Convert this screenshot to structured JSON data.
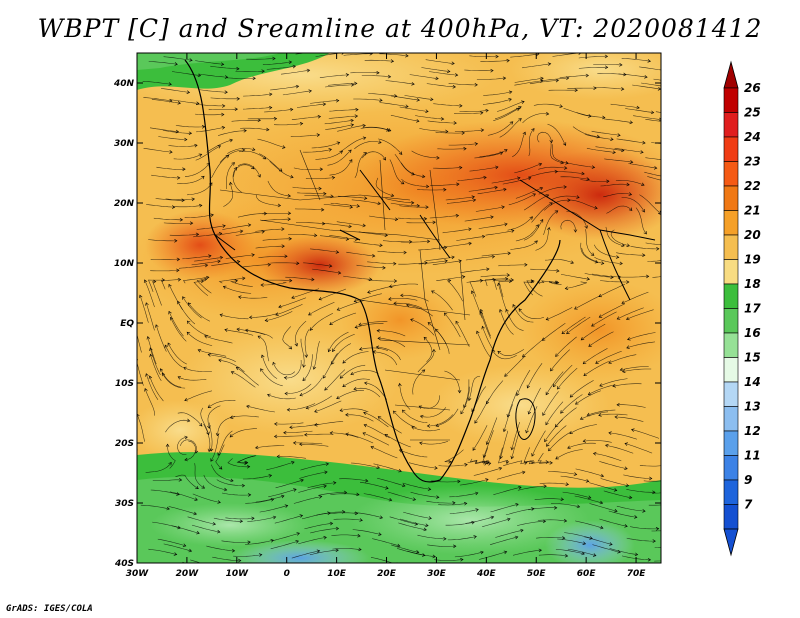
{
  "title": "WBPT [C] and Sreamline at 400hPa, VT: 2020081412",
  "credit": "GrADS: IGES/COLA",
  "map": {
    "lon_labels": [
      "30W",
      "20W",
      "10W",
      "0",
      "10E",
      "20E",
      "30E",
      "40E",
      "50E",
      "60E",
      "70E"
    ],
    "lat_labels": [
      "40N",
      "30N",
      "20N",
      "10N",
      "EQ",
      "10S",
      "20S",
      "30S",
      "40S"
    ],
    "lon_range": [
      -30,
      75
    ],
    "lat_range": [
      -40,
      45
    ]
  },
  "colorbar": {
    "labels": [
      "26",
      "25",
      "24",
      "23",
      "22",
      "21",
      "20",
      "19",
      "18",
      "17",
      "16",
      "15",
      "14",
      "13",
      "12",
      "11",
      "9",
      "7"
    ],
    "colors": [
      "#c00000",
      "#e01e1e",
      "#f03c14",
      "#f55a14",
      "#f07814",
      "#f5a028",
      "#f5be50",
      "#f8dc82",
      "#3cbe3c",
      "#5ac85a",
      "#96e196",
      "#e6fae6",
      "#b4d7f5",
      "#8cbef0",
      "#5aa0eb",
      "#3c82e6",
      "#1e64dc",
      "#1450d2"
    ],
    "top_arrow_color": "#a00000",
    "bottom_arrow_color": "#1450d2"
  }
}
